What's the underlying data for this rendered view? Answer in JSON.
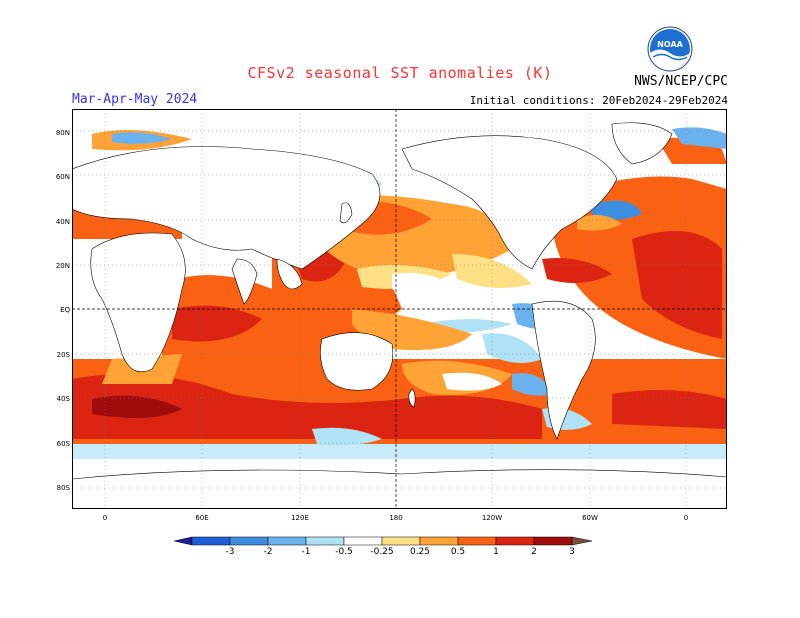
{
  "title": "CFSv2 seasonal SST anomalies (K)",
  "period": "Mar-Apr-May 2024",
  "initial_conditions": "Initial conditions: 20Feb2024-29Feb2024",
  "agency": "NWS/NCEP/CPC",
  "logo_text": "NOAA",
  "lat_labels": [
    "80N",
    "60N",
    "40N",
    "20N",
    "EQ",
    "20S",
    "40S",
    "60S",
    "80S"
  ],
  "lon_labels": [
    "0",
    "60E",
    "120E",
    "180",
    "120W",
    "60W",
    "0"
  ],
  "colorbar": {
    "labels": [
      "-3",
      "-2",
      "-1",
      "-0.5",
      "-0.25",
      "0.25",
      "0.5",
      "1",
      "2",
      "3"
    ],
    "colors": [
      "#1e1e99",
      "#1f5fd6",
      "#3e8ee0",
      "#6ab2ee",
      "#b0e2f6",
      "#ffffff",
      "#ffe085",
      "#ffa336",
      "#fb6112",
      "#db2412",
      "#a00c0c",
      "#7b4a3a"
    ]
  },
  "colors": {
    "warm_strong": "#db2412",
    "warm": "#fb6112",
    "warm_light": "#ffa336",
    "warm_pale": "#ffe085",
    "cool_pale": "#b0e2f6",
    "cool": "#6ab2ee",
    "cool_strong": "#3e8ee0",
    "land": "#ffffff",
    "coast": "#000000"
  }
}
